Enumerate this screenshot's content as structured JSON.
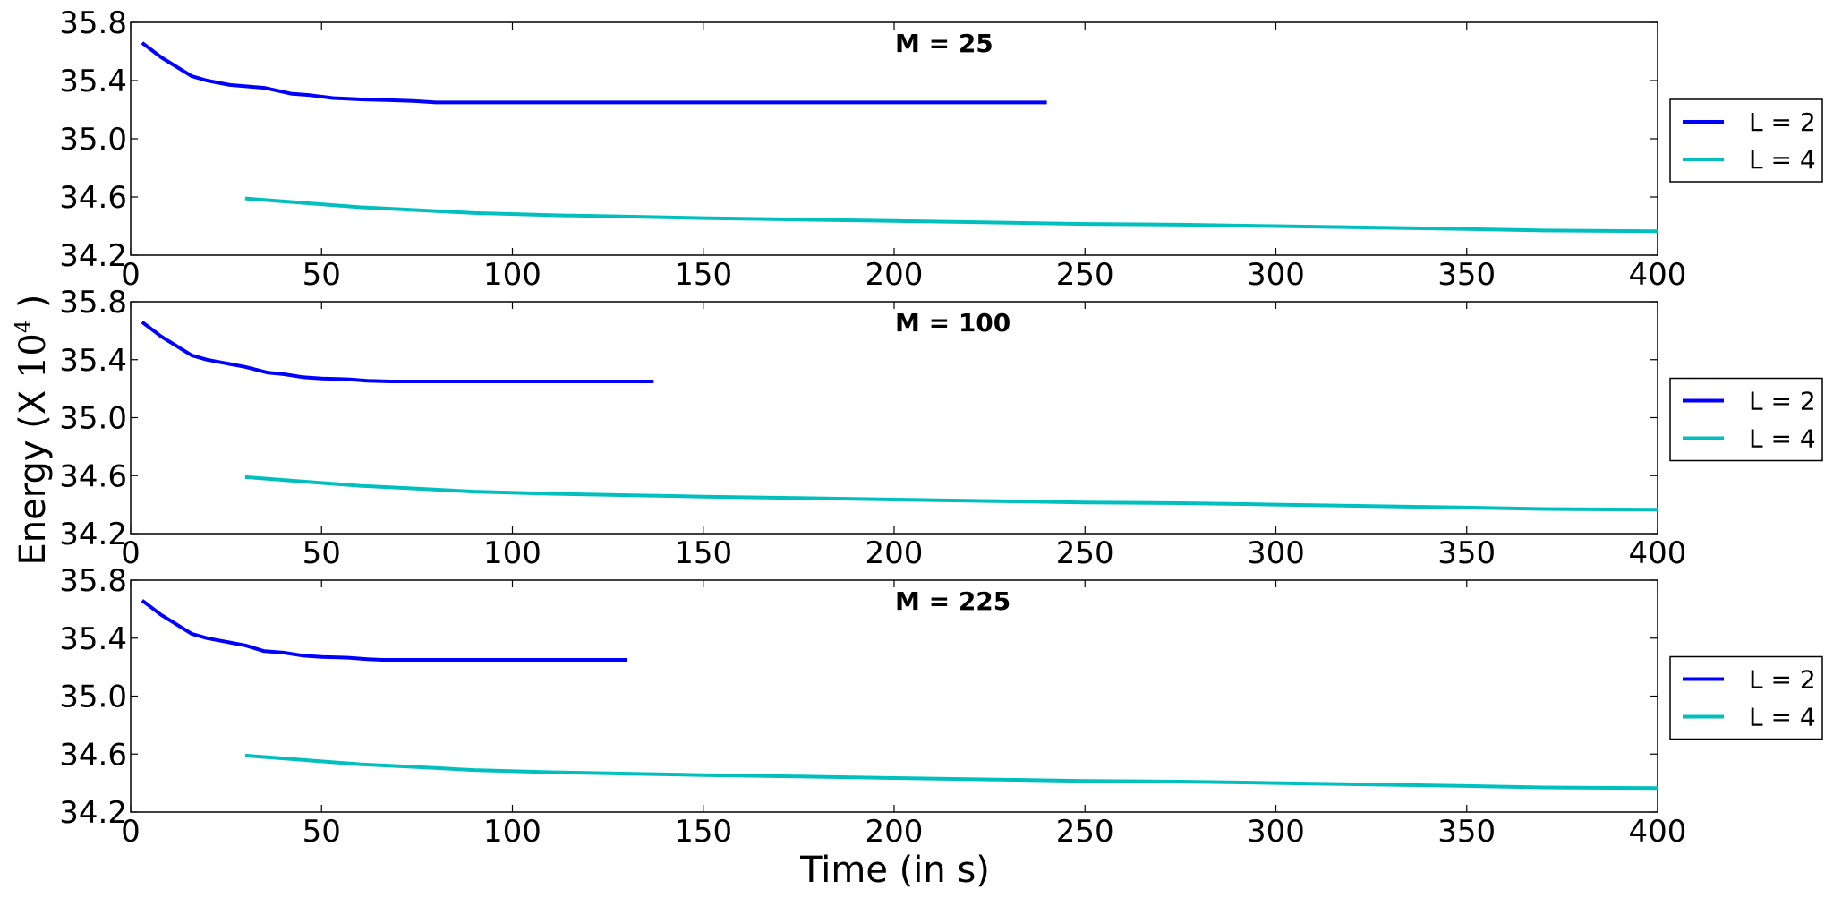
{
  "chart_data": {
    "type": "line",
    "xlabel": "Time (in s)",
    "ylabel": {
      "prefix": "Energy (X ",
      "base": "10",
      "exponent": "4",
      "suffix": " )"
    },
    "xlim": [
      0,
      400
    ],
    "ylim": [
      34.2,
      35.8
    ],
    "xticks": [
      "0",
      "50",
      "100",
      "150",
      "200",
      "250",
      "300",
      "350",
      "400"
    ],
    "yticks": [
      "34.2",
      "34.6",
      "35.0",
      "35.4",
      "35.8"
    ],
    "grid": false,
    "legend_placement": "right, outside plot",
    "colors": {
      "L = 2": "#0000ff",
      "L = 4": "#00bfbf"
    },
    "panels": [
      {
        "title": "M = 25",
        "series": [
          {
            "name": "L = 2",
            "color": "#0000ff",
            "x": [
              3,
              8,
              16,
              20,
              26,
              35,
              42,
              47,
              53,
              61,
              68,
              74,
              80,
              100,
              150,
              200,
              240
            ],
            "y": [
              35.66,
              35.56,
              35.43,
              35.4,
              35.37,
              35.35,
              35.31,
              35.3,
              35.28,
              35.27,
              35.265,
              35.26,
              35.25,
              35.25,
              35.25,
              35.25,
              35.25
            ]
          },
          {
            "name": "L = 4",
            "color": "#00bfbf",
            "x": [
              30,
              45,
              60,
              75,
              90,
              110,
              130,
              150,
              175,
              200,
              225,
              250,
              275,
              300,
              325,
              350,
              370,
              400
            ],
            "y": [
              34.59,
              34.56,
              34.53,
              34.51,
              34.49,
              34.475,
              34.465,
              34.455,
              34.445,
              34.435,
              34.425,
              34.415,
              34.41,
              34.4,
              34.39,
              34.38,
              34.37,
              34.365
            ]
          }
        ]
      },
      {
        "title": "M = 100",
        "series": [
          {
            "name": "L = 2",
            "color": "#0000ff",
            "x": [
              3,
              8,
              16,
              20,
              26,
              30,
              36,
              40,
              45,
              50,
              57,
              62,
              68,
              90,
              110,
              137
            ],
            "y": [
              35.66,
              35.56,
              35.43,
              35.4,
              35.37,
              35.35,
              35.31,
              35.3,
              35.28,
              35.27,
              35.265,
              35.255,
              35.25,
              35.25,
              35.25,
              35.25
            ]
          },
          {
            "name": "L = 4",
            "color": "#00bfbf",
            "x": [
              30,
              45,
              60,
              75,
              90,
              110,
              130,
              150,
              175,
              200,
              225,
              250,
              275,
              300,
              325,
              350,
              370,
              400
            ],
            "y": [
              34.59,
              34.56,
              34.53,
              34.51,
              34.49,
              34.475,
              34.465,
              34.455,
              34.445,
              34.435,
              34.425,
              34.415,
              34.41,
              34.4,
              34.39,
              34.38,
              34.37,
              34.365
            ]
          }
        ]
      },
      {
        "title": "M = 225",
        "series": [
          {
            "name": "L = 2",
            "color": "#0000ff",
            "x": [
              3,
              8,
              16,
              20,
              26,
              30,
              35,
              40,
              45,
              50,
              57,
              62,
              66,
              90,
              110,
              130
            ],
            "y": [
              35.66,
              35.56,
              35.43,
              35.4,
              35.37,
              35.35,
              35.31,
              35.3,
              35.28,
              35.27,
              35.265,
              35.255,
              35.25,
              35.25,
              35.25,
              35.25
            ]
          },
          {
            "name": "L = 4",
            "color": "#00bfbf",
            "x": [
              30,
              45,
              60,
              75,
              90,
              110,
              130,
              150,
              175,
              200,
              225,
              250,
              275,
              300,
              325,
              350,
              370,
              400
            ],
            "y": [
              34.59,
              34.56,
              34.53,
              34.51,
              34.49,
              34.475,
              34.465,
              34.455,
              34.445,
              34.435,
              34.425,
              34.415,
              34.41,
              34.4,
              34.39,
              34.38,
              34.37,
              34.365
            ]
          }
        ]
      }
    ]
  }
}
